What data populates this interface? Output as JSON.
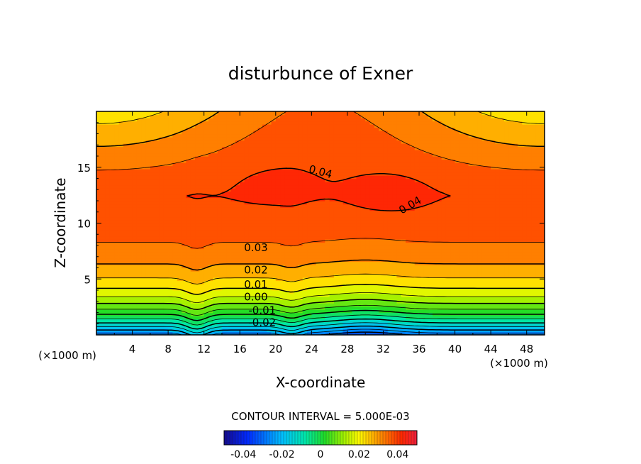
{
  "chart_data": {
    "type": "heatmap",
    "title": "disturbunce of Exner",
    "xlabel": "X-coordinate",
    "ylabel": "Z-coordinate",
    "x_unit_left": "(×1000 m)",
    "x_unit_right": "(×1000 m)",
    "xlim": [
      0,
      50
    ],
    "ylim": [
      0,
      20
    ],
    "x_ticks": [
      4,
      8,
      12,
      16,
      20,
      24,
      28,
      32,
      36,
      40,
      44,
      48
    ],
    "x_tick_labels": [
      "4",
      "8",
      "12",
      "16",
      "20",
      "24",
      "28",
      "32",
      "36",
      "40",
      "44",
      "48"
    ],
    "y_ticks": [
      5,
      10,
      15
    ],
    "y_tick_labels": [
      "5",
      "10",
      "15"
    ],
    "contour_interval_label": "CONTOUR INTERVAL = 5.000E-03",
    "contour_interval": 0.005,
    "color_range": [
      -0.05,
      0.05
    ],
    "colorbar_ticks": [
      -0.04,
      -0.02,
      0,
      0.02,
      0.04
    ],
    "colorbar_tick_labels": [
      "-0.04",
      "-0.02",
      "0",
      "0.02",
      "0.04"
    ],
    "contour_labels": [
      {
        "text": "0.04",
        "x": 25.0,
        "z": 14.6,
        "angle": 15
      },
      {
        "text": "0.04",
        "x": 35.0,
        "z": 11.6,
        "angle": -30
      },
      {
        "text": "0.03",
        "x": 17.8,
        "z": 7.8,
        "angle": 0
      },
      {
        "text": "0.02",
        "x": 17.8,
        "z": 5.8,
        "angle": 0
      },
      {
        "text": "0.01",
        "x": 17.8,
        "z": 4.5,
        "angle": 0
      },
      {
        "text": "0.00",
        "x": 17.8,
        "z": 3.4,
        "angle": 0
      },
      {
        "text": "-0.01",
        "x": 18.5,
        "z": 2.2,
        "angle": 0
      },
      {
        "text": "-0.02",
        "x": 18.5,
        "z": 1.1,
        "angle": 0
      }
    ],
    "field_description": {
      "surface_value": -0.028,
      "upper_plateau_value": 0.042,
      "max_value": 0.046,
      "max_location": {
        "x": 32.5,
        "z": 12.8
      },
      "bumps_at_x": [
        11.2,
        21.8
      ]
    }
  }
}
